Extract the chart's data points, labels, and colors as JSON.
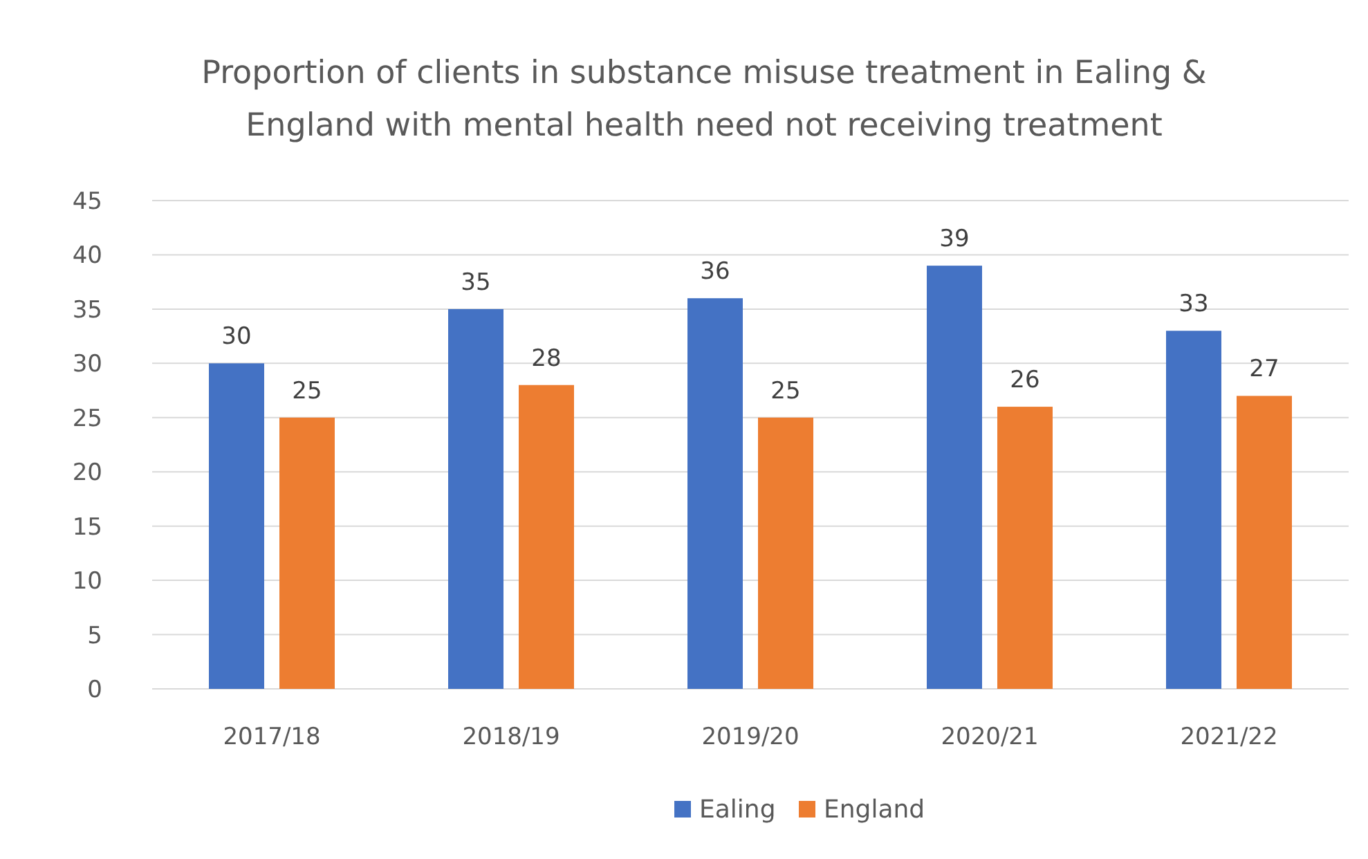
{
  "chart_data": {
    "type": "bar",
    "title": "Proportion of clients in substance misuse treatment in Ealing & England with mental health need not receiving treatment",
    "categories": [
      "2017/18",
      "2018/19",
      "2019/20",
      "2020/21",
      "2021/22"
    ],
    "series": [
      {
        "name": "Ealing",
        "color": "#4472c4",
        "values": [
          30,
          35,
          36,
          39,
          33
        ]
      },
      {
        "name": "England",
        "color": "#ed7d31",
        "values": [
          25,
          28,
          25,
          26,
          27
        ]
      }
    ],
    "ylim": [
      0,
      45
    ],
    "yticks": [
      0,
      5,
      10,
      15,
      20,
      25,
      30,
      35,
      40,
      45
    ],
    "grid": "y",
    "legend": "bottom",
    "data_labels": true
  }
}
